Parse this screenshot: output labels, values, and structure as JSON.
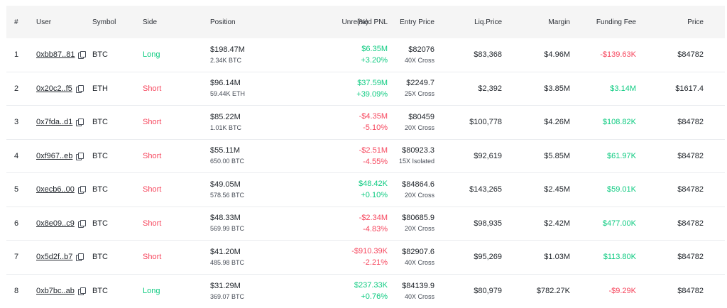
{
  "columns": {
    "idx": "#",
    "user": "User",
    "symbol": "Symbol",
    "side": "Side",
    "position": "Position",
    "pnl": "Unrelised PNL",
    "pct": "(%)",
    "entry": "Entry Price",
    "liq": "Liq.Price",
    "margin": "Margin",
    "funding": "Funding Fee",
    "price": "Price"
  },
  "colors": {
    "positive": "#0ecb81",
    "negative": "#f6465d"
  },
  "rows": [
    {
      "idx": "1",
      "user": "0xbb87..81",
      "symbol": "BTC",
      "side": "Long",
      "position": "$198.47M",
      "size": "2.34K BTC",
      "pnl": "$6.35M",
      "pnl_pct": "+3.20%",
      "entry": "$82076",
      "leverage": "40X Cross",
      "liq": "$83,368",
      "margin": "$4.96M",
      "funding": "-$139.63K",
      "price": "$84782"
    },
    {
      "idx": "2",
      "user": "0x20c2..f5",
      "symbol": "ETH",
      "side": "Short",
      "position": "$96.14M",
      "size": "59.44K ETH",
      "pnl": "$37.59M",
      "pnl_pct": "+39.09%",
      "entry": "$2249.7",
      "leverage": "25X Cross",
      "liq": "$2,392",
      "margin": "$3.85M",
      "funding": "$3.14M",
      "price": "$1617.4"
    },
    {
      "idx": "3",
      "user": "0x7fda..d1",
      "symbol": "BTC",
      "side": "Short",
      "position": "$85.22M",
      "size": "1.01K BTC",
      "pnl": "-$4.35M",
      "pnl_pct": "-5.10%",
      "entry": "$80459",
      "leverage": "20X Cross",
      "liq": "$100,778",
      "margin": "$4.26M",
      "funding": "$108.82K",
      "price": "$84782"
    },
    {
      "idx": "4",
      "user": "0xf967..eb",
      "symbol": "BTC",
      "side": "Short",
      "position": "$55.11M",
      "size": "650.00 BTC",
      "pnl": "-$2.51M",
      "pnl_pct": "-4.55%",
      "entry": "$80923.3",
      "leverage": "15X Isolated",
      "liq": "$92,619",
      "margin": "$5.85M",
      "funding": "$61.97K",
      "price": "$84782"
    },
    {
      "idx": "5",
      "user": "0xecb6..00",
      "symbol": "BTC",
      "side": "Short",
      "position": "$49.05M",
      "size": "578.56 BTC",
      "pnl": "$48.42K",
      "pnl_pct": "+0.10%",
      "entry": "$84864.6",
      "leverage": "20X Cross",
      "liq": "$143,265",
      "margin": "$2.45M",
      "funding": "$59.01K",
      "price": "$84782"
    },
    {
      "idx": "6",
      "user": "0x8e09..c9",
      "symbol": "BTC",
      "side": "Short",
      "position": "$48.33M",
      "size": "569.99 BTC",
      "pnl": "-$2.34M",
      "pnl_pct": "-4.83%",
      "entry": "$80685.9",
      "leverage": "20X Cross",
      "liq": "$98,935",
      "margin": "$2.42M",
      "funding": "$477.00K",
      "price": "$84782"
    },
    {
      "idx": "7",
      "user": "0x5d2f..b7",
      "symbol": "BTC",
      "side": "Short",
      "position": "$41.20M",
      "size": "485.98 BTC",
      "pnl": "-$910.39K",
      "pnl_pct": "-2.21%",
      "entry": "$82907.6",
      "leverage": "40X Cross",
      "liq": "$95,269",
      "margin": "$1.03M",
      "funding": "$113.80K",
      "price": "$84782"
    },
    {
      "idx": "8",
      "user": "0xb7bc..ab",
      "symbol": "BTC",
      "side": "Long",
      "position": "$31.29M",
      "size": "369.07 BTC",
      "pnl": "$237.33K",
      "pnl_pct": "+0.76%",
      "entry": "$84139.9",
      "leverage": "40X Cross",
      "liq": "$80,979",
      "margin": "$782.27K",
      "funding": "-$9.29K",
      "price": "$84782"
    }
  ]
}
